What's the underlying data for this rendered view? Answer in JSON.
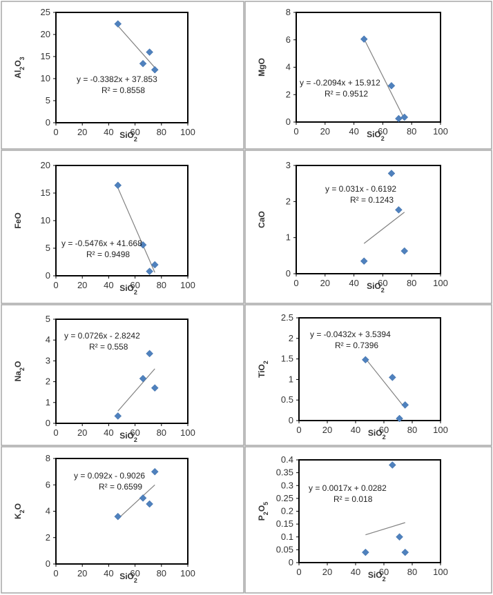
{
  "colors": {
    "marker": "#4f81bd",
    "trendline": "#808080",
    "plot_border": "#000000",
    "panel_border": "#a6a6a6"
  },
  "chart_data": [
    {
      "type": "scatter",
      "xlabel": "SiO2",
      "ylabel": "Al2O3",
      "xlim": [
        0,
        100
      ],
      "ylim": [
        0,
        25
      ],
      "xticks": [
        "0",
        "20",
        "40",
        "60",
        "80",
        "100"
      ],
      "yticks": [
        "0",
        "5",
        "10",
        "15",
        "20",
        "25"
      ],
      "points": [
        [
          47,
          22.4
        ],
        [
          66,
          13.4
        ],
        [
          71,
          16
        ],
        [
          75,
          12
        ]
      ],
      "trendline": {
        "slope": -0.3382,
        "intercept": 37.853,
        "x_range": [
          47,
          75
        ]
      },
      "equation": "y = -0.3382x + 37.853",
      "r2": "R² = 0.8558"
    },
    {
      "type": "scatter",
      "xlabel": "SiO2",
      "ylabel": "MgO",
      "xlim": [
        0,
        100
      ],
      "ylim": [
        0,
        8
      ],
      "xticks": [
        "0",
        "20",
        "40",
        "60",
        "80",
        "100"
      ],
      "yticks": [
        "0",
        "2",
        "4",
        "6",
        "8"
      ],
      "points": [
        [
          47,
          6.05
        ],
        [
          66,
          2.65
        ],
        [
          71,
          0.25
        ],
        [
          75,
          0.35
        ]
      ],
      "trendline": {
        "slope": -0.2094,
        "intercept": 15.912,
        "x_range": [
          47,
          75
        ]
      },
      "equation": "y = -0.2094x + 15.912",
      "r2": "R² = 0.9512"
    },
    {
      "type": "scatter",
      "xlabel": "SiO2",
      "ylabel": "FeO",
      "xlim": [
        0,
        100
      ],
      "ylim": [
        0,
        20
      ],
      "xticks": [
        "0",
        "20",
        "40",
        "60",
        "80",
        "100"
      ],
      "yticks": [
        "0",
        "5",
        "10",
        "15",
        "20"
      ],
      "points": [
        [
          47,
          16.4
        ],
        [
          66,
          5.6
        ],
        [
          71,
          0.8
        ],
        [
          75,
          2
        ]
      ],
      "trendline": {
        "slope": -0.5476,
        "intercept": 41.668,
        "x_range": [
          47,
          75
        ]
      },
      "equation": "y = -0.5476x + 41.668",
      "r2": "R² = 0.9498"
    },
    {
      "type": "scatter",
      "xlabel": "SiO2",
      "ylabel": "CaO",
      "xlim": [
        0,
        100
      ],
      "ylim": [
        0,
        3
      ],
      "xticks": [
        "0",
        "20",
        "40",
        "60",
        "80",
        "100"
      ],
      "yticks": [
        "0",
        "1",
        "2",
        "3"
      ],
      "points": [
        [
          47,
          0.35
        ],
        [
          66,
          2.78
        ],
        [
          71,
          1.77
        ],
        [
          75,
          0.63
        ]
      ],
      "trendline": {
        "slope": 0.031,
        "intercept": -0.6192,
        "x_range": [
          47,
          75
        ]
      },
      "equation": "y = 0.031x - 0.6192",
      "r2": "R² = 0.1243"
    },
    {
      "type": "scatter",
      "xlabel": "SiO2",
      "ylabel": "Na2O",
      "xlim": [
        0,
        100
      ],
      "ylim": [
        0,
        5
      ],
      "xticks": [
        "0",
        "20",
        "40",
        "60",
        "80",
        "100"
      ],
      "yticks": [
        "0",
        "1",
        "2",
        "3",
        "4",
        "5"
      ],
      "points": [
        [
          47,
          0.35
        ],
        [
          66,
          2.15
        ],
        [
          71,
          3.35
        ],
        [
          75,
          1.7
        ]
      ],
      "trendline": {
        "slope": 0.0726,
        "intercept": -2.8242,
        "x_range": [
          47,
          75
        ]
      },
      "equation": "y = 0.0726x - 2.8242",
      "r2": "R² = 0.558"
    },
    {
      "type": "scatter",
      "xlabel": "SiO2",
      "ylabel": "TiO2",
      "xlim": [
        0,
        100
      ],
      "ylim": [
        0,
        2.5
      ],
      "xticks": [
        "0",
        "20",
        "40",
        "60",
        "80",
        "100"
      ],
      "yticks": [
        "0",
        "0.5",
        "1",
        "1.5",
        "2",
        "2.5"
      ],
      "points": [
        [
          47,
          1.48
        ],
        [
          66,
          1.05
        ],
        [
          71,
          0.05
        ],
        [
          75,
          0.38
        ]
      ],
      "trendline": {
        "slope": -0.0432,
        "intercept": 3.5394,
        "x_range": [
          47,
          75
        ]
      },
      "equation": "y = -0.0432x + 3.5394",
      "r2": "R² = 0.7396"
    },
    {
      "type": "scatter",
      "xlabel": "SiO2",
      "ylabel": "K2O",
      "xlim": [
        0,
        100
      ],
      "ylim": [
        0,
        8
      ],
      "xticks": [
        "0",
        "20",
        "40",
        "60",
        "80",
        "100"
      ],
      "yticks": [
        "0",
        "2",
        "4",
        "6",
        "8"
      ],
      "points": [
        [
          47,
          3.6
        ],
        [
          66,
          5
        ],
        [
          71,
          4.55
        ],
        [
          75,
          7
        ]
      ],
      "trendline": {
        "slope": 0.092,
        "intercept": -0.9026,
        "x_range": [
          47,
          75
        ]
      },
      "equation": "y = 0.092x - 0.9026",
      "r2": "R² = 0.6599"
    },
    {
      "type": "scatter",
      "xlabel": "SiO2",
      "ylabel": "P2O5",
      "xlim": [
        0,
        100
      ],
      "ylim": [
        0,
        0.4
      ],
      "xticks": [
        "0",
        "20",
        "40",
        "60",
        "80",
        "100"
      ],
      "yticks": [
        "0",
        "0.05",
        "0.1",
        "0.15",
        "0.2",
        "0.25",
        "0.3",
        "0.35",
        "0.4"
      ],
      "points": [
        [
          47,
          0.04
        ],
        [
          66,
          0.38
        ],
        [
          71,
          0.1
        ],
        [
          75,
          0.04
        ]
      ],
      "trendline": {
        "slope": 0.0017,
        "intercept": 0.0282,
        "x_range": [
          47,
          75
        ]
      },
      "equation": "y = 0.0017x + 0.0282",
      "r2": "R² = 0.018"
    }
  ]
}
